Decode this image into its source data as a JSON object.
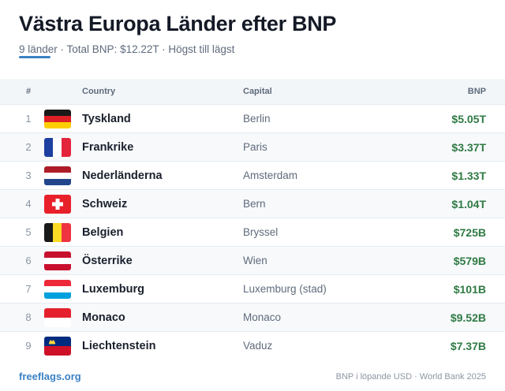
{
  "header": {
    "title": "Västra Europa Länder efter BNP",
    "subtitle": "9 länder · Total BNP: $12.22T · Högst till lägst"
  },
  "table": {
    "columns": {
      "rank": "#",
      "country": "Country",
      "capital": "Capital",
      "gdp": "BNP"
    },
    "rows": [
      {
        "rank": "1",
        "flag": "germany-flag-icon",
        "country": "Tyskland",
        "capital": "Berlin",
        "gdp": "$5.05T"
      },
      {
        "rank": "2",
        "flag": "france-flag-icon",
        "country": "Frankrike",
        "capital": "Paris",
        "gdp": "$3.37T"
      },
      {
        "rank": "3",
        "flag": "netherlands-flag-icon",
        "country": "Nederländerna",
        "capital": "Amsterdam",
        "gdp": "$1.33T"
      },
      {
        "rank": "4",
        "flag": "switzerland-flag-icon",
        "country": "Schweiz",
        "capital": "Bern",
        "gdp": "$1.04T"
      },
      {
        "rank": "5",
        "flag": "belgium-flag-icon",
        "country": "Belgien",
        "capital": "Bryssel",
        "gdp": "$725B"
      },
      {
        "rank": "6",
        "flag": "austria-flag-icon",
        "country": "Österrike",
        "capital": "Wien",
        "gdp": "$579B"
      },
      {
        "rank": "7",
        "flag": "luxembourg-flag-icon",
        "country": "Luxemburg",
        "capital": "Luxemburg (stad)",
        "gdp": "$101B"
      },
      {
        "rank": "8",
        "flag": "monaco-flag-icon",
        "country": "Monaco",
        "capital": "Monaco",
        "gdp": "$9.52B"
      },
      {
        "rank": "9",
        "flag": "liechtenstein-flag-icon",
        "country": "Liechtenstein",
        "capital": "Vaduz",
        "gdp": "$7.37B"
      }
    ]
  },
  "footer": {
    "brand": "freeflags.org",
    "source": "BNP i löpande USD · World Bank 2025"
  },
  "colors": {
    "accent": "#3b82c4",
    "gdp_value": "#2f7a44",
    "row_alt": "#f7f9fb"
  }
}
